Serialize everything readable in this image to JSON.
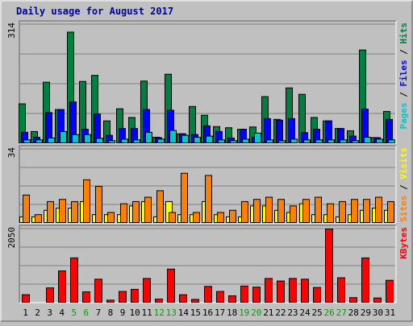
{
  "chart_data": {
    "type": "bar",
    "title": "Daily usage for August 2017",
    "categories": [
      "1",
      "2",
      "3",
      "4",
      "5",
      "6",
      "7",
      "8",
      "9",
      "10",
      "11",
      "12",
      "13",
      "14",
      "15",
      "16",
      "17",
      "18",
      "19",
      "20",
      "21",
      "22",
      "23",
      "24",
      "25",
      "26",
      "27",
      "28",
      "29",
      "30",
      "31"
    ],
    "weekend_days": [
      5,
      6,
      12,
      13,
      19,
      20,
      26,
      27
    ],
    "panels": [
      {
        "id": "hits-files-pages",
        "ymax_label": "314",
        "ymax": 314,
        "legend": [
          {
            "text": "Pages",
            "color": "#00c8c8"
          },
          {
            "text": " / ",
            "color": "#000000"
          },
          {
            "text": "Files",
            "color": "#0000ff"
          },
          {
            "text": " / ",
            "color": "#000000"
          },
          {
            "text": "Hits",
            "color": "#008040"
          }
        ],
        "series": [
          {
            "name": "Hits",
            "color": "#008040",
            "values": [
              105,
              32,
              162,
              90,
              294,
              164,
              180,
              60,
              92,
              69,
              165,
              17,
              183,
              26,
              98,
              75,
              45,
              42,
              38,
              44,
              124,
              64,
              147,
              130,
              69,
              60,
              40,
              34,
              247,
              16,
              85
            ]
          },
          {
            "name": "Files",
            "color": "#0000ff",
            "values": [
              30,
              17,
              82,
              90,
              110,
              38,
              78,
              22,
              40,
              40,
              90,
              16,
              88,
              26,
              24,
              47,
              32,
              15,
              38,
              17,
              66,
              62,
              66,
              29,
              38,
              60,
              40,
              20,
              91,
              16,
              64
            ]
          },
          {
            "name": "Pages",
            "color": "#00c8c8",
            "values": [
              10,
              10,
              15,
              32,
              24,
              24,
              14,
              8,
              12,
              10,
              30,
              12,
              35,
              22,
              17,
              20,
              10,
              8,
              12,
              28,
              10,
              8,
              12,
              10,
              10,
              10,
              10,
              8,
              17,
              12,
              10
            ]
          }
        ]
      },
      {
        "id": "visits-sites",
        "ymax_label": "34",
        "ymax": 34,
        "legend": [
          {
            "text": "Sites",
            "color": "#ff8000"
          },
          {
            "text": " / ",
            "color": "#000000"
          },
          {
            "text": "Visits",
            "color": "#ffff00"
          }
        ],
        "series": [
          {
            "name": "Visits",
            "color": "#ffff00",
            "values": [
              3,
              3,
              6,
              7,
              7,
              10,
              4,
              4,
              4,
              8,
              10,
              3,
              10,
              4,
              4,
              10,
              4,
              3,
              3,
              8,
              8,
              6,
              5,
              9,
              4,
              4,
              3,
              4,
              6,
              7,
              6
            ]
          },
          {
            "name": "Sites",
            "color": "#ff8000",
            "values": [
              13,
              4,
              10,
              11,
              10,
              20,
              17,
              5,
              9,
              10,
              12,
              15,
              5,
              23,
              5,
              22,
              5,
              6,
              10,
              11,
              12,
              11,
              8,
              11,
              12,
              9,
              10,
              11,
              11,
              12,
              10
            ]
          }
        ]
      },
      {
        "id": "kbytes",
        "ymax_label": "2050",
        "ymax": 2050,
        "legend": [
          {
            "text": "KBytes",
            "color": "#ff0000"
          }
        ],
        "series": [
          {
            "name": "KBytes",
            "color": "#ff0000",
            "values": [
              232,
              0,
              420,
              890,
              1250,
              310,
              660,
              80,
              320,
              380,
              680,
              110,
              940,
              230,
              100,
              460,
              320,
              200,
              470,
              440,
              680,
              610,
              680,
              660,
              430,
              2050,
              700,
              150,
              1250,
              140,
              630
            ]
          }
        ]
      }
    ]
  }
}
